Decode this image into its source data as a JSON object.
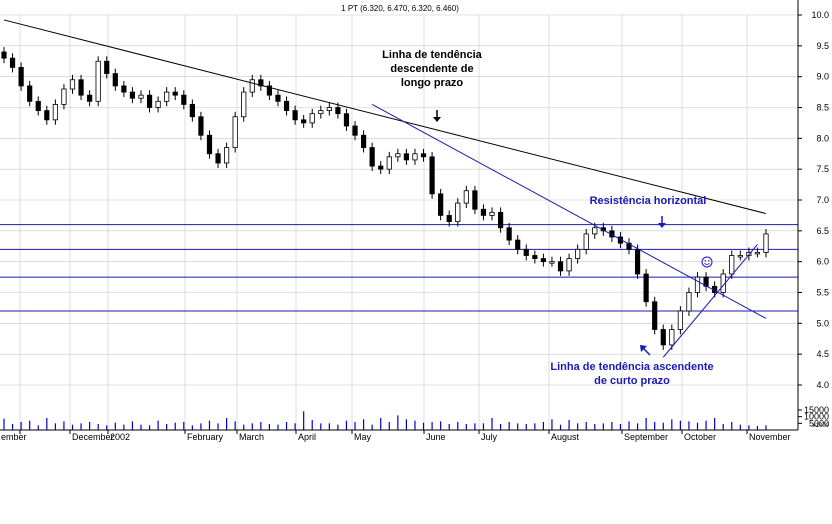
{
  "chart_data": {
    "type": "candlestick",
    "title": "1 PT (6.320, 6.470, 6.320, 6.460)",
    "price_axis": {
      "ylim": [
        4.0,
        10.0
      ],
      "ticks": [
        "10.0",
        "9.5",
        "9.0",
        "8.5",
        "8.0",
        "7.5",
        "7.0",
        "6.5",
        "6.0",
        "5.5",
        "5.0",
        "4.5",
        "4.0"
      ]
    },
    "volume_axis": {
      "ylim": [
        0,
        17000
      ],
      "ticks": [
        "15000",
        "10000",
        "5000"
      ],
      "scale_note": "x1000"
    },
    "x_ticks": [
      "ember",
      "December",
      "2002",
      "February",
      "March",
      "April",
      "May",
      "June",
      "July",
      "August",
      "September",
      "October",
      "November"
    ],
    "closes": [
      9.3,
      9.15,
      8.85,
      8.6,
      8.45,
      8.3,
      8.55,
      8.8,
      8.95,
      8.7,
      8.6,
      9.25,
      9.05,
      8.85,
      8.75,
      8.65,
      8.7,
      8.5,
      8.6,
      8.75,
      8.7,
      8.55,
      8.35,
      8.05,
      7.75,
      7.6,
      7.85,
      8.35,
      8.75,
      8.95,
      8.85,
      8.7,
      8.6,
      8.45,
      8.3,
      8.25,
      8.4,
      8.45,
      8.5,
      8.4,
      8.2,
      8.05,
      7.85,
      7.55,
      7.5,
      7.7,
      7.75,
      7.65,
      7.75,
      7.7,
      7.1,
      6.75,
      6.65,
      6.95,
      7.15,
      6.85,
      6.75,
      6.8,
      6.55,
      6.35,
      6.2,
      6.1,
      6.05,
      6.0,
      6.0,
      5.85,
      6.05,
      6.2,
      6.45,
      6.55,
      6.5,
      6.4,
      6.3,
      6.2,
      5.8,
      5.35,
      4.9,
      4.65,
      4.9,
      5.2,
      5.5,
      5.75,
      5.6,
      5.5,
      5.8,
      6.1,
      6.1,
      6.15,
      6.15,
      6.45
    ],
    "volumes": [
      8.5,
      4.5,
      6,
      7,
      3.5,
      9,
      5,
      6.5,
      4,
      5,
      6,
      4.5,
      3.5,
      5.5,
      4,
      6.5,
      4,
      3.5,
      7,
      4.5,
      5.5,
      6,
      3.5,
      5,
      7,
      5,
      9,
      6.5,
      4,
      5,
      6,
      4.5,
      4,
      6,
      5,
      14,
      7.5,
      5,
      5,
      4,
      7,
      6,
      8,
      4,
      9,
      6,
      11,
      8,
      7,
      5.5,
      6,
      6.5,
      4.5,
      6,
      4.5,
      5,
      5,
      9,
      4.5,
      6,
      5,
      4.5,
      5,
      6,
      8,
      4,
      7.5,
      5,
      6,
      4.5,
      5,
      6,
      4.5,
      6.5,
      5,
      9,
      6,
      5.5,
      8,
      7,
      6.5,
      5.5,
      7,
      9,
      4.5,
      6,
      4,
      3.5,
      3,
      3.5
    ],
    "lines": [
      {
        "label": "Linha de tendência descendente de longo prazo",
        "from": [
          0,
          9.92
        ],
        "to": [
          89,
          6.78
        ]
      },
      {
        "label": "Linha de tendência descendente",
        "from": [
          43,
          8.55
        ],
        "to": [
          89,
          5.08
        ]
      },
      {
        "label": "Linha de tendência ascendente de curto prazo",
        "from": [
          77,
          4.45
        ],
        "to": [
          88,
          6.28
        ]
      }
    ],
    "horizontal_levels": [
      6.6,
      6.2,
      5.75,
      5.2
    ],
    "annotations": [
      {
        "lines": [
          "Linha de tendência",
          "descendente de",
          "longo prazo"
        ],
        "arrow": "down"
      },
      {
        "lines": [
          "Resistência horizontal"
        ],
        "arrow": "down"
      },
      {
        "lines": [
          "Linha de tendência ascendente",
          "de curto prazo"
        ],
        "arrow": "up-left"
      }
    ],
    "grid": true,
    "colors": {
      "candles": "#000000",
      "volume": "#0000cc",
      "trend_blue": "#1a1ab4",
      "trend_black": "#000000",
      "grid": "#c8c8c8"
    }
  }
}
